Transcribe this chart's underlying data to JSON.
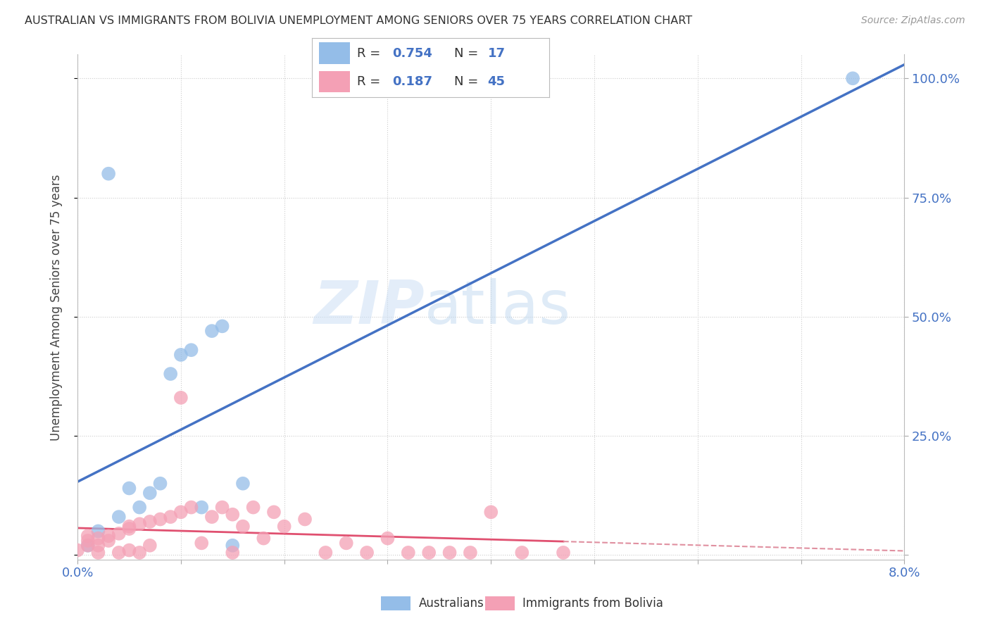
{
  "title": "AUSTRALIAN VS IMMIGRANTS FROM BOLIVIA UNEMPLOYMENT AMONG SENIORS OVER 75 YEARS CORRELATION CHART",
  "source": "Source: ZipAtlas.com",
  "ylabel": "Unemployment Among Seniors over 75 years",
  "watermark_zip": "ZIP",
  "watermark_atlas": "atlas",
  "australian_color": "#94bde8",
  "bolivian_color": "#f4a0b5",
  "line_aus_color": "#4472c4",
  "line_bol_solid_color": "#e05070",
  "line_bol_dash_color": "#e090a0",
  "aus_x": [
    0.001,
    0.002,
    0.003,
    0.004,
    0.005,
    0.006,
    0.007,
    0.008,
    0.009,
    0.01,
    0.011,
    0.012,
    0.013,
    0.014,
    0.015,
    0.016,
    0.075
  ],
  "aus_y": [
    0.02,
    0.05,
    0.8,
    0.08,
    0.14,
    0.1,
    0.13,
    0.15,
    0.38,
    0.42,
    0.43,
    0.1,
    0.47,
    0.48,
    0.02,
    0.15,
    1.0
  ],
  "bol_x": [
    0.0,
    0.001,
    0.001,
    0.001,
    0.002,
    0.002,
    0.002,
    0.003,
    0.003,
    0.004,
    0.004,
    0.005,
    0.005,
    0.005,
    0.006,
    0.006,
    0.007,
    0.007,
    0.008,
    0.009,
    0.01,
    0.01,
    0.011,
    0.012,
    0.013,
    0.014,
    0.015,
    0.015,
    0.016,
    0.017,
    0.018,
    0.019,
    0.02,
    0.022,
    0.024,
    0.026,
    0.028,
    0.03,
    0.032,
    0.034,
    0.036,
    0.038,
    0.04,
    0.043,
    0.047
  ],
  "bol_y": [
    0.01,
    0.02,
    0.03,
    0.04,
    0.02,
    0.035,
    0.005,
    0.03,
    0.04,
    0.045,
    0.005,
    0.055,
    0.06,
    0.01,
    0.065,
    0.005,
    0.07,
    0.02,
    0.075,
    0.08,
    0.09,
    0.33,
    0.1,
    0.025,
    0.08,
    0.1,
    0.085,
    0.005,
    0.06,
    0.1,
    0.035,
    0.09,
    0.06,
    0.075,
    0.005,
    0.025,
    0.005,
    0.035,
    0.005,
    0.005,
    0.005,
    0.005,
    0.09,
    0.005,
    0.005
  ],
  "xlim": [
    0.0,
    0.08
  ],
  "ylim": [
    -0.01,
    1.05
  ],
  "xticks": [
    0.0,
    0.01,
    0.02,
    0.03,
    0.04,
    0.05,
    0.06,
    0.07,
    0.08
  ],
  "yticks": [
    0.0,
    0.25,
    0.5,
    0.75,
    1.0
  ],
  "ytick_labels_right": [
    "",
    "25.0%",
    "50.0%",
    "75.0%",
    "100.0%"
  ],
  "legend_r1": "0.754",
  "legend_n1": "17",
  "legend_r2": "0.187",
  "legend_n2": "45"
}
